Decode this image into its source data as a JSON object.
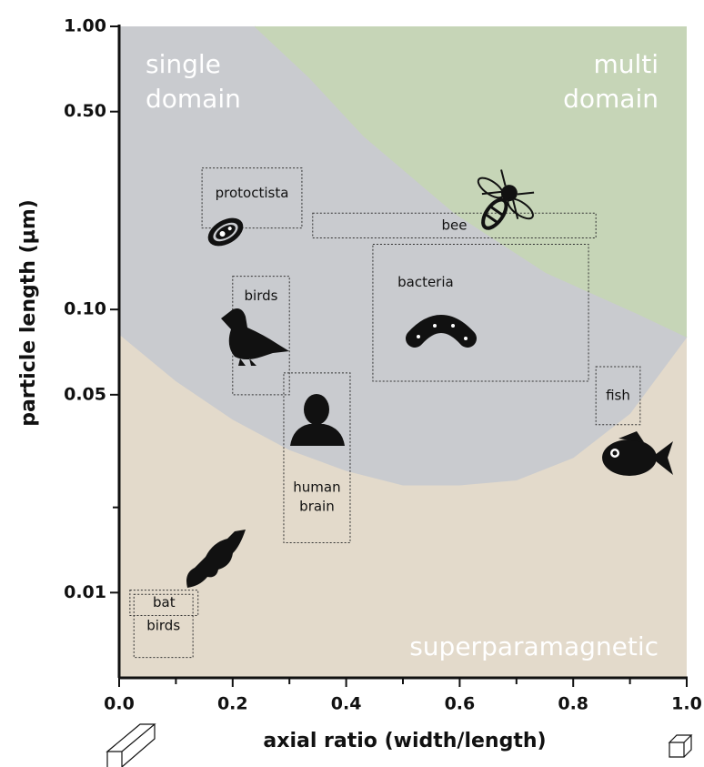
{
  "chart_data": {
    "type": "region-map",
    "x_label": "axial ratio (width/length)",
    "y_label": "particle length (µm)",
    "xlim": [
      0,
      1
    ],
    "ylim": [
      0.005,
      1
    ],
    "log_y": true,
    "xticks": [
      {
        "value": 0,
        "label": "0.0"
      },
      {
        "value": 0.2,
        "label": "0.2"
      },
      {
        "value": 0.4,
        "label": "0.4"
      },
      {
        "value": 0.6,
        "label": "0.6"
      },
      {
        "value": 0.8,
        "label": "0.8"
      },
      {
        "value": 1,
        "label": "1.0"
      }
    ],
    "xminorticks": [
      0.1,
      0.3,
      0.5,
      0.7,
      0.9
    ],
    "yticks": [
      {
        "value": 1,
        "label": "1.00"
      },
      {
        "value": 0.5,
        "label": "0.50"
      },
      {
        "value": 0.1,
        "label": "0.10"
      },
      {
        "value": 0.05,
        "label": "0.05"
      },
      {
        "value": 0.01,
        "label": "0.01"
      }
    ],
    "yminorticks": [
      0.02
    ],
    "regions": [
      {
        "label": [
          "superparamagnetic"
        ],
        "color": "#e3dacb"
      },
      {
        "label": [
          "single",
          "domain"
        ],
        "color": "#c9cbcf"
      },
      {
        "label": [
          "multi",
          "domain"
        ],
        "color": "#c6d5b7"
      }
    ],
    "boundaries": [
      {
        "x": [
          0,
          0.1,
          0.2,
          0.3,
          0.4,
          0.5,
          0.6,
          0.7,
          0.8,
          0.9,
          1
        ],
        "y": [
          0.082,
          0.056,
          0.041,
          0.032,
          0.027,
          0.024,
          0.024,
          0.025,
          0.03,
          0.043,
          0.08
        ]
      },
      {
        "x": [
          0.239,
          0.335,
          0.431,
          0.591,
          0.752,
          0.912,
          1
        ],
        "y": [
          1,
          0.66,
          0.41,
          0.219,
          0.135,
          0.097,
          0.08
        ]
      }
    ],
    "boxes": [
      {
        "label": [
          "protoctista"
        ],
        "x": [
          0.146,
          0.322
        ],
        "y": [
          0.316,
          0.194
        ]
      },
      {
        "label": [
          "bee"
        ],
        "x": [
          0.341,
          0.84
        ],
        "y": [
          0.219,
          0.179
        ]
      },
      {
        "label": [
          "birds"
        ],
        "x": [
          0.2,
          0.3
        ],
        "y": [
          0.131,
          0.05
        ]
      },
      {
        "label": [
          "bacteria"
        ],
        "x": [
          0.447,
          0.827
        ],
        "y": [
          0.17,
          0.0558
        ]
      },
      {
        "label": [
          "fish"
        ],
        "x": [
          0.84,
          0.918
        ],
        "y": [
          0.0628,
          0.0392
        ]
      },
      {
        "label": [
          "human",
          "brain"
        ],
        "x": [
          0.29,
          0.407
        ],
        "y": [
          0.0597,
          0.015
        ]
      },
      {
        "label": [
          "bat"
        ],
        "x": [
          0.019,
          0.139
        ],
        "y": [
          0.0102,
          0.0083
        ]
      },
      {
        "label": [
          "birds"
        ],
        "x": [
          0.026,
          0.13
        ],
        "y": [
          0.00986,
          0.0059
        ]
      }
    ]
  }
}
